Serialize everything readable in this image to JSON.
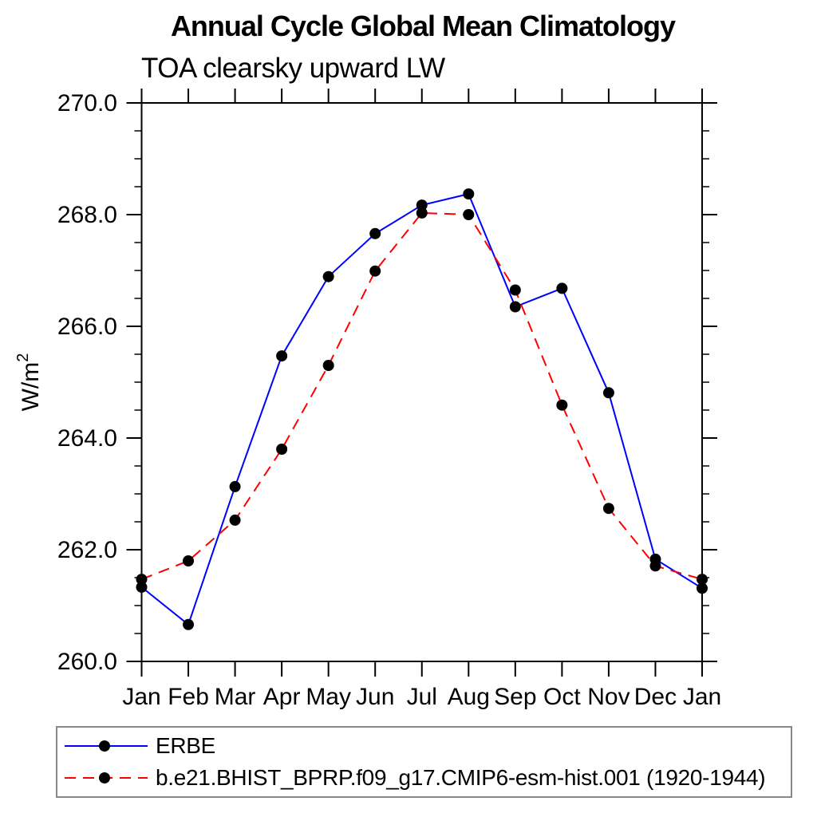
{
  "chart_data": {
    "type": "line",
    "title": "Annual Cycle Global Mean Climatology",
    "subtitle": "TOA clearsky upward LW",
    "ylabel_base": "W/m",
    "ylabel_exponent": "2",
    "categories": [
      "Jan",
      "Feb",
      "Mar",
      "Apr",
      "May",
      "Jun",
      "Jul",
      "Aug",
      "Sep",
      "Oct",
      "Nov",
      "Dec",
      "Jan"
    ],
    "ylim": [
      260.0,
      270.0
    ],
    "ytick_major_interval": 2.0,
    "ytick_minor_interval": 0.5,
    "ytick_labels": [
      "260.0",
      "262.0",
      "264.0",
      "266.0",
      "268.0",
      "270.0"
    ],
    "grid": false,
    "legend_position": "bottom-left-boxed",
    "frame_color": "#000000",
    "marker": "filled-circle",
    "marker_color": "#000000",
    "series": [
      {
        "name": "ERBE",
        "color": "#0000ff",
        "line_style": "solid",
        "values": [
          261.33,
          260.66,
          263.13,
          265.47,
          266.89,
          267.66,
          268.17,
          268.37,
          266.35,
          266.68,
          264.81,
          261.83,
          261.31
        ]
      },
      {
        "name": "b.e21.BHIST_BPRP.f09_g17.CMIP6-esm-hist.001 (1920-1944)",
        "color": "#ff0000",
        "line_style": "dashed",
        "values": [
          261.47,
          261.8,
          262.53,
          263.8,
          265.3,
          266.99,
          268.03,
          268.0,
          266.65,
          264.59,
          262.74,
          261.71,
          261.47
        ]
      }
    ]
  }
}
